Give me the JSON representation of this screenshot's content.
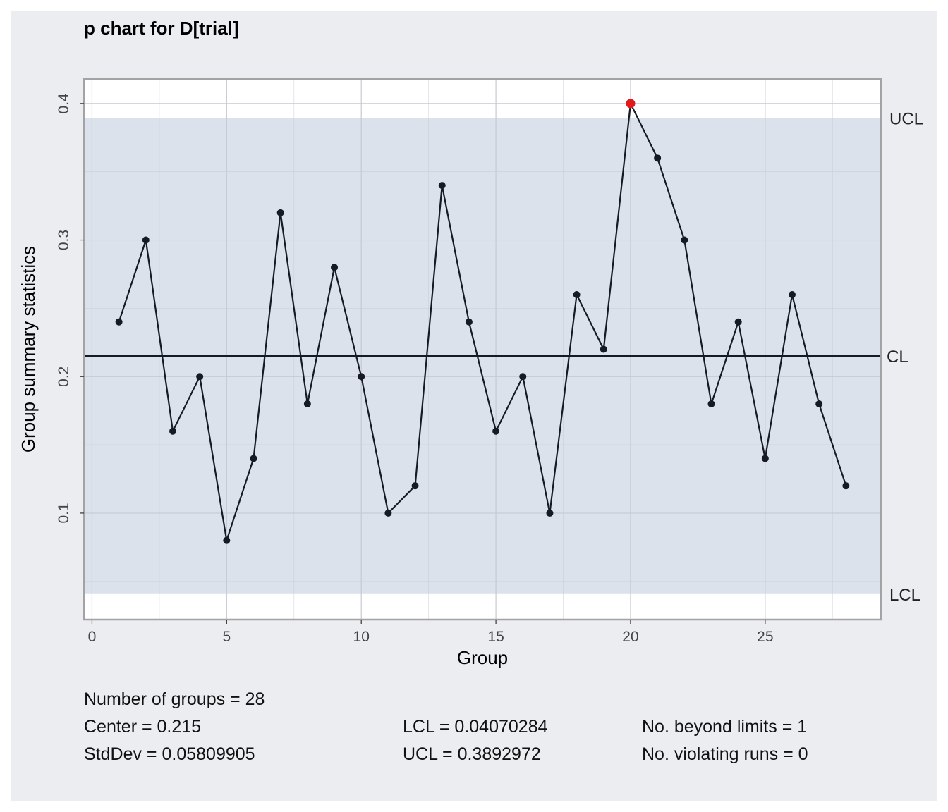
{
  "colors": {
    "background": "#ebedf1",
    "plot_background": "#ffffff",
    "control_band": "#dce2eb",
    "grid": "#c5cad3",
    "line": "#151a24",
    "point": "#151a24",
    "violation_point": "#e31a1c",
    "axis_box": "#a3a3a3"
  },
  "chart_data": {
    "type": "line",
    "title": "p chart for D[trial]",
    "xlabel": "Group",
    "ylabel": "Group summary statistics",
    "xlim": [
      -0.3,
      29.3
    ],
    "ylim": [
      0.022,
      0.418
    ],
    "x_ticks": [
      0,
      5,
      10,
      15,
      20,
      25
    ],
    "x_tick_labels": [
      "0",
      "5",
      "10",
      "15",
      "20",
      "25"
    ],
    "y_ticks": [
      0.1,
      0.2,
      0.3,
      0.4
    ],
    "y_tick_labels": [
      "0.1",
      "0.2",
      "0.3",
      "0.4"
    ],
    "grid": true,
    "x": [
      1,
      2,
      3,
      4,
      5,
      6,
      7,
      8,
      9,
      10,
      11,
      12,
      13,
      14,
      15,
      16,
      17,
      18,
      19,
      20,
      21,
      22,
      23,
      24,
      25,
      26,
      27,
      28
    ],
    "values": [
      0.24,
      0.3,
      0.16,
      0.2,
      0.08,
      0.14,
      0.32,
      0.18,
      0.28,
      0.2,
      0.1,
      0.12,
      0.34,
      0.24,
      0.16,
      0.2,
      0.1,
      0.26,
      0.22,
      0.4,
      0.36,
      0.3,
      0.18,
      0.24,
      0.14,
      0.26,
      0.18,
      0.12
    ],
    "beyond_limits_x": [
      20
    ],
    "center": 0.215,
    "lcl": 0.04070284,
    "ucl": 0.3892972,
    "limit_labels": {
      "ucl": "UCL",
      "cl": "CL",
      "lcl": "LCL"
    }
  },
  "stats": {
    "groups": "Number of groups = 28",
    "center": "Center = 0.215",
    "stddev": "StdDev = 0.05809905",
    "lcl": "LCL = 0.04070284",
    "ucl": "UCL = 0.3892972",
    "beyond": "No. beyond limits = 1",
    "runs": "No. violating runs = 0"
  }
}
